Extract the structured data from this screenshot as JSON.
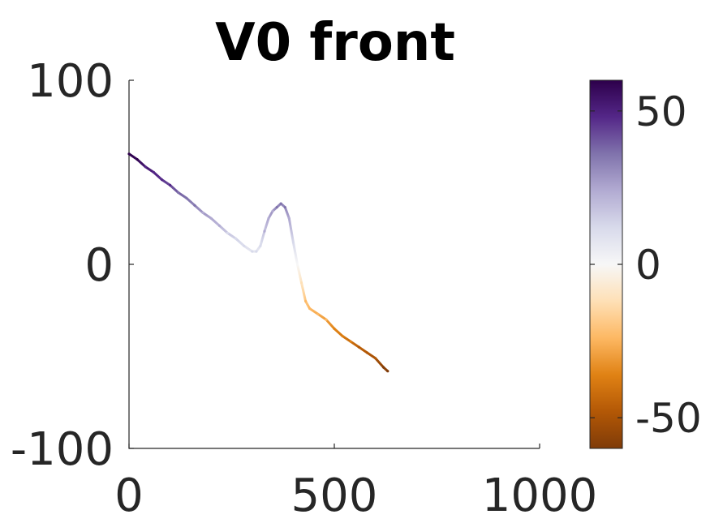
{
  "chart_data": {
    "type": "line",
    "title": "V0 front",
    "xlabel": "",
    "ylabel": "",
    "xlim": [
      0,
      1000
    ],
    "ylim": [
      -100,
      100
    ],
    "x_ticks": [
      0,
      500,
      1000
    ],
    "x_tick_labels": [
      "0",
      "500",
      "1000"
    ],
    "y_ticks": [
      -100,
      0,
      100
    ],
    "y_tick_labels": [
      "-100",
      "0",
      "100"
    ],
    "grid": false,
    "legend": "none",
    "series": [
      {
        "x": [
          0,
          20,
          40,
          60,
          80,
          100,
          120,
          140,
          160,
          180,
          200,
          220,
          240,
          260,
          280,
          300,
          310,
          320,
          330,
          340,
          350,
          360,
          370,
          380,
          390,
          400,
          410,
          420,
          430,
          440,
          460,
          480,
          500,
          520,
          540,
          560,
          580,
          600,
          620,
          630
        ],
        "y": [
          60,
          57,
          53,
          50,
          46,
          43,
          39,
          36,
          32,
          28,
          25,
          21,
          17,
          14,
          10,
          7,
          7,
          10,
          18,
          25,
          29,
          31,
          33,
          31,
          25,
          12,
          0,
          -10,
          -20,
          -24,
          -27,
          -30,
          -35,
          -39,
          -42,
          -45,
          -48,
          -51,
          -56,
          -58
        ]
      }
    ],
    "colorbar": {
      "clim": [
        -60,
        60
      ],
      "ticks": [
        -50,
        0,
        50
      ],
      "tick_labels": [
        "-50",
        "0",
        "50"
      ],
      "colormap": "PuOr",
      "colors": [
        "#7f3b08",
        "#b35806",
        "#e08214",
        "#fdb863",
        "#fee0b6",
        "#f7f7f7",
        "#d8daeb",
        "#b2abd2",
        "#8073ac",
        "#542788",
        "#2d004b"
      ]
    }
  }
}
